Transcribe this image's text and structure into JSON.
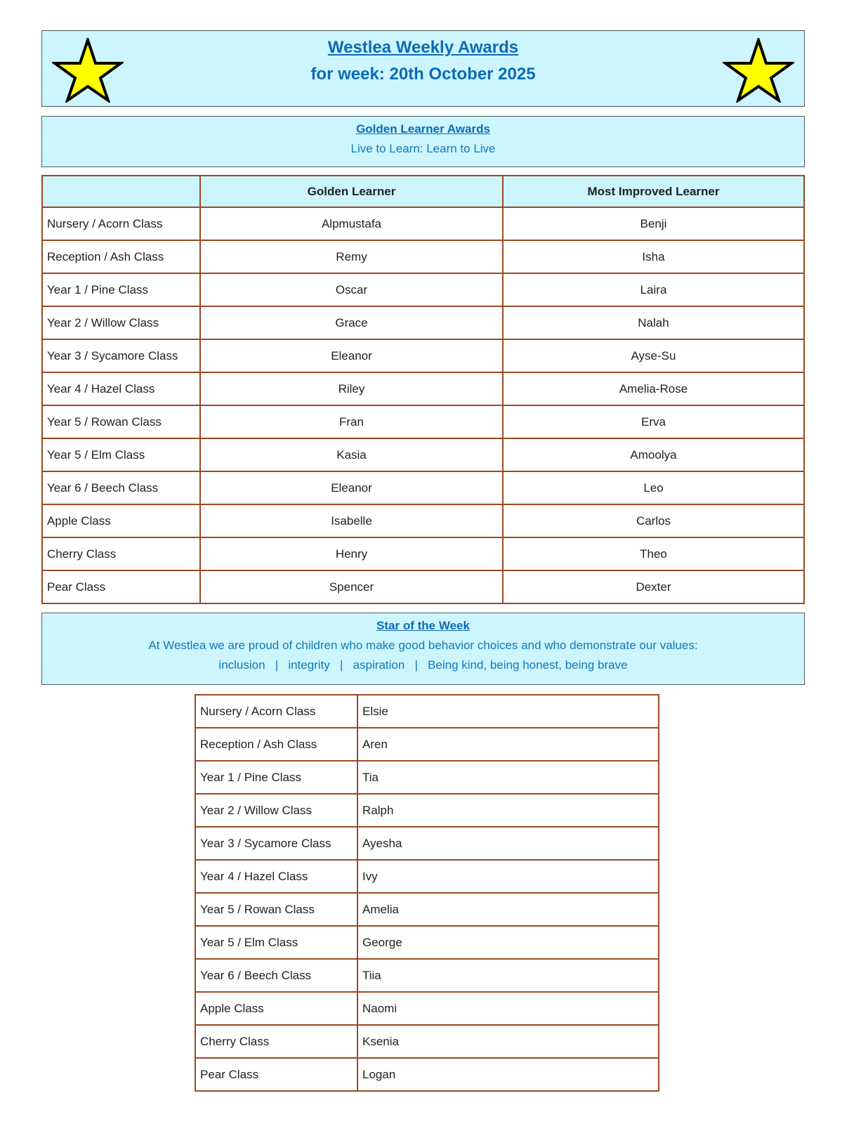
{
  "header": {
    "title": "Westlea Weekly Awards",
    "subtitle": "for week: 20th October 2025",
    "star_color": "#ffff00"
  },
  "golden": {
    "title": "Golden Learner Awards",
    "motto": "Live to Learn: Learn to Live",
    "columns": [
      "",
      "Golden Learner",
      "Most Improved Learner"
    ],
    "rows": [
      [
        "Nursery / Acorn Class",
        "Alpmustafa",
        "Benji"
      ],
      [
        "Reception / Ash Class",
        "Remy",
        "Isha"
      ],
      [
        "Year 1 / Pine Class",
        "Oscar",
        "Laira"
      ],
      [
        "Year 2 / Willow Class",
        "Grace",
        "Nalah"
      ],
      [
        "Year  3 / Sycamore Class",
        "Eleanor",
        "Ayse-Su"
      ],
      [
        "Year 4 / Hazel Class",
        "Riley",
        "Amelia-Rose"
      ],
      [
        "Year 5 / Rowan Class",
        "Fran",
        "Erva"
      ],
      [
        "Year 5 / Elm Class",
        "Kasia",
        "Amoolya"
      ],
      [
        "Year 6 / Beech Class",
        "Eleanor",
        "Leo"
      ],
      [
        "Apple Class",
        "Isabelle",
        "Carlos"
      ],
      [
        "Cherry Class",
        "Henry",
        "Theo"
      ],
      [
        "Pear Class",
        "Spencer",
        "Dexter"
      ]
    ]
  },
  "star_week": {
    "title": "Star of the Week",
    "text": "At Westlea we are proud of children who make good behavior choices and who demonstrate our values:",
    "values": "inclusion   |   integrity   |   aspiration   |   Being kind, being honest, being brave",
    "rows": [
      [
        "Nursery / Acorn Class",
        "Elsie"
      ],
      [
        "Reception / Ash Class",
        "Aren"
      ],
      [
        "Year 1 / Pine Class",
        "Tia"
      ],
      [
        "Year 2 / Willow Class",
        "Ralph"
      ],
      [
        "Year  3 / Sycamore Class",
        "Ayesha"
      ],
      [
        "Year 4 / Hazel Class",
        "Ivy"
      ],
      [
        "Year 5 / Rowan Class",
        "Amelia"
      ],
      [
        "Year 5 / Elm Class",
        "George"
      ],
      [
        "Year 6 / Beech Class",
        "Tiia"
      ],
      [
        "Apple Class",
        "Naomi"
      ],
      [
        "Cherry Class",
        "Ksenia"
      ],
      [
        "Pear Class",
        "Logan"
      ]
    ]
  }
}
